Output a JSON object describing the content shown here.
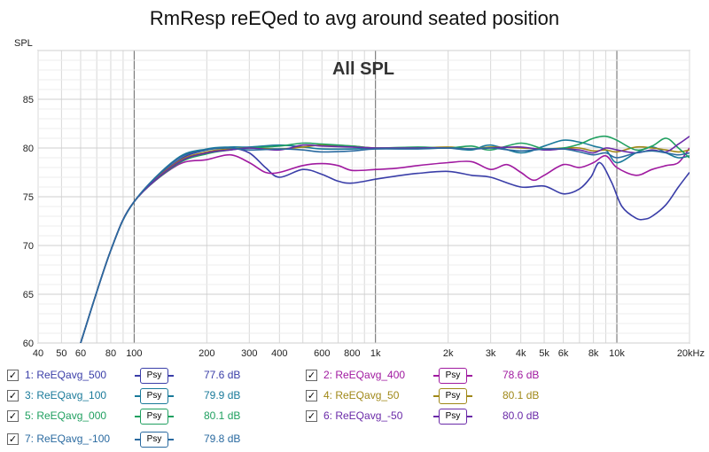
{
  "title": "RmResp reEQed to avg around seated position",
  "chart_data": {
    "type": "line",
    "title": "RmResp reEQed to avg around seated position",
    "subtitle": "All SPL",
    "ylabel": "SPL",
    "xlabel_unit": "kHz",
    "xscale": "log",
    "xlim": [
      40,
      20000
    ],
    "ylim": [
      60,
      90
    ],
    "grid": true,
    "yticks": [
      60,
      65,
      70,
      75,
      80,
      85
    ],
    "ytick_labels": [
      "60",
      "65",
      "70",
      "75",
      "80",
      "85"
    ],
    "xticks": [
      40,
      50,
      60,
      80,
      100,
      200,
      300,
      400,
      600,
      800,
      1000,
      2000,
      3000,
      4000,
      5000,
      6000,
      8000,
      10000,
      20000
    ],
    "xtick_labels": [
      "40",
      "50",
      "60",
      "80",
      "100",
      "200",
      "300",
      "400",
      "600",
      "800",
      "1k",
      "2k",
      "3k",
      "4k",
      "5k",
      "6k",
      "8k",
      "10k",
      "20kHz"
    ],
    "legend_placement": "below",
    "series": [
      {
        "name": "1: ReEQavg_500",
        "value": "77.6 dB",
        "color": "#3a3ea8",
        "x": [
          60,
          80,
          100,
          150,
          200,
          250,
          300,
          350,
          400,
          500,
          600,
          700,
          800,
          1000,
          1200,
          1500,
          2000,
          2500,
          3000,
          4000,
          5000,
          6000,
          7000,
          7800,
          8500,
          9500,
          10500,
          12000,
          13000,
          14000,
          16000,
          18000,
          20000
        ],
        "y": [
          60,
          69.5,
          74.5,
          78.6,
          79.8,
          80.0,
          79.5,
          78.0,
          77.0,
          77.8,
          77.3,
          76.6,
          76.4,
          76.8,
          77.1,
          77.4,
          77.6,
          77.2,
          77.0,
          76.0,
          76.1,
          75.3,
          75.8,
          77.0,
          78.5,
          76.5,
          74.0,
          72.8,
          72.7,
          73.0,
          74.2,
          76.0,
          77.5
        ]
      },
      {
        "name": "2: ReEQavg_400",
        "value": "78.6 dB",
        "color": "#a01aa0",
        "x": [
          60,
          80,
          100,
          150,
          200,
          250,
          300,
          350,
          400,
          500,
          600,
          700,
          800,
          1000,
          1200,
          1500,
          2000,
          2500,
          3000,
          3500,
          4000,
          4500,
          5000,
          6000,
          7000,
          8000,
          9000,
          10000,
          12000,
          14000,
          16000,
          18000,
          20000
        ],
        "y": [
          60,
          69.5,
          74.5,
          78.2,
          78.8,
          79.3,
          78.5,
          77.5,
          77.5,
          78.2,
          78.4,
          78.2,
          77.7,
          77.8,
          77.9,
          78.2,
          78.5,
          78.6,
          77.8,
          78.3,
          77.5,
          76.7,
          77.2,
          78.3,
          78.0,
          78.5,
          79.2,
          78.0,
          77.2,
          77.8,
          78.2,
          78.5,
          80.0
        ]
      },
      {
        "name": "3: ReEQavg_100",
        "value": "79.9 dB",
        "color": "#1a7a9a",
        "x": [
          60,
          80,
          100,
          150,
          200,
          250,
          300,
          400,
          500,
          600,
          800,
          1000,
          1500,
          2000,
          2500,
          3000,
          4000,
          5000,
          6000,
          7000,
          8000,
          9000,
          10000,
          12000,
          14000,
          16000,
          18000,
          20000
        ],
        "y": [
          60,
          69.5,
          74.5,
          78.9,
          79.9,
          80.1,
          80.1,
          80.3,
          80.1,
          79.9,
          79.9,
          80.0,
          80.0,
          80.0,
          79.8,
          80.3,
          79.5,
          80.2,
          80.8,
          80.6,
          80.2,
          79.8,
          78.5,
          79.5,
          80.1,
          79.5,
          79.0,
          79.2
        ]
      },
      {
        "name": "4: ReEQavg_50",
        "value": "80.1 dB",
        "color": "#a08818",
        "x": [
          60,
          80,
          100,
          150,
          200,
          250,
          300,
          400,
          500,
          600,
          800,
          1000,
          1500,
          2000,
          2500,
          3000,
          4000,
          5000,
          6000,
          7000,
          8000,
          9000,
          10000,
          12000,
          14000,
          16000,
          18000,
          20000
        ],
        "y": [
          60,
          69.5,
          74.5,
          78.5,
          79.6,
          79.9,
          80.0,
          79.9,
          80.1,
          80.3,
          80.2,
          80.0,
          80.0,
          80.1,
          79.9,
          80.1,
          80.0,
          79.9,
          80.0,
          80.0,
          79.7,
          79.8,
          79.6,
          80.1,
          80.0,
          79.8,
          79.6,
          79.8
        ]
      },
      {
        "name": "5: ReEQavg_000",
        "value": "80.1 dB",
        "color": "#20a060",
        "x": [
          60,
          80,
          100,
          150,
          200,
          250,
          300,
          400,
          500,
          600,
          800,
          1000,
          1500,
          2000,
          2500,
          3000,
          4000,
          5000,
          6000,
          7000,
          8000,
          9000,
          10000,
          12000,
          14000,
          16000,
          18000,
          20000
        ],
        "y": [
          60,
          69.5,
          74.5,
          78.3,
          79.4,
          79.8,
          80.0,
          80.2,
          80.5,
          80.4,
          80.2,
          80.0,
          80.1,
          80.0,
          80.2,
          79.8,
          80.5,
          79.9,
          80.0,
          80.4,
          81.0,
          81.2,
          80.8,
          79.8,
          80.2,
          81.0,
          80.0,
          79.0
        ]
      },
      {
        "name": "6: ReEQavg_-50",
        "value": "80.0 dB",
        "color": "#6a2aa8",
        "x": [
          60,
          80,
          100,
          150,
          200,
          250,
          300,
          400,
          500,
          600,
          800,
          1000,
          1500,
          2000,
          2500,
          3000,
          4000,
          5000,
          6000,
          7000,
          8000,
          9000,
          10000,
          12000,
          14000,
          16000,
          18000,
          20000
        ],
        "y": [
          60,
          69.5,
          74.5,
          78.4,
          79.5,
          79.8,
          80.0,
          79.8,
          80.3,
          80.2,
          80.1,
          80.0,
          80.0,
          80.0,
          79.9,
          80.0,
          80.1,
          79.8,
          79.9,
          79.8,
          79.5,
          80.0,
          79.8,
          79.5,
          79.8,
          79.6,
          80.4,
          81.2
        ]
      },
      {
        "name": "7: ReEQavg_-100",
        "value": "79.8 dB",
        "color": "#2a6aa0",
        "x": [
          60,
          80,
          100,
          150,
          200,
          250,
          300,
          400,
          500,
          600,
          800,
          1000,
          1500,
          2000,
          2500,
          3000,
          4000,
          5000,
          6000,
          7000,
          8000,
          9000,
          10000,
          12000,
          14000,
          16000,
          18000,
          20000
        ],
        "y": [
          60,
          69.5,
          74.5,
          78.8,
          79.8,
          80.0,
          79.8,
          79.9,
          79.8,
          79.6,
          79.7,
          79.9,
          79.9,
          80.0,
          79.9,
          80.0,
          79.7,
          79.9,
          79.9,
          79.6,
          79.3,
          79.5,
          79.0,
          79.5,
          79.7,
          79.5,
          79.3,
          79.5
        ]
      }
    ]
  },
  "legend": {
    "psy_label": "Psy",
    "checked_glyph": "✓"
  }
}
